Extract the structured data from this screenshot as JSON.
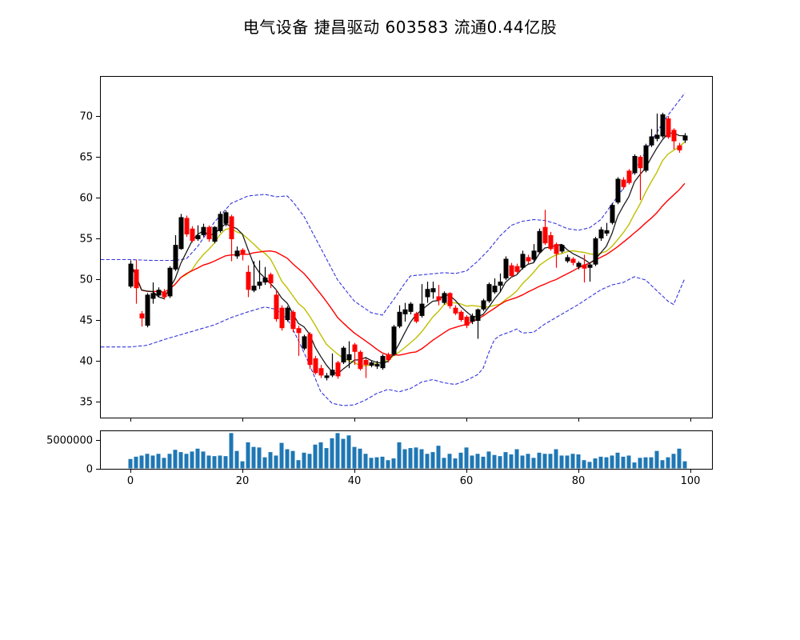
{
  "page": {
    "title": "电气设备 捷昌驱动 603583 流通0.44亿股"
  },
  "chart_data": {
    "type": "candlestick+volume",
    "title": "电气设备 捷昌驱动 603583 流通0.44亿股",
    "legend_position": "none",
    "grid": false,
    "price_axis": {
      "ticks": [
        35,
        40,
        45,
        50,
        55,
        60,
        65,
        70
      ],
      "range": [
        33.0,
        74.9
      ]
    },
    "volume_axis": {
      "tick_labels": [
        "0",
        "5000000"
      ],
      "tick_values": [
        0,
        5000000
      ],
      "range": [
        0,
        6670000
      ]
    },
    "x_axis": {
      "ticks": [
        0,
        20,
        40,
        60,
        80,
        100
      ],
      "range": [
        -5.4,
        103.9
      ]
    },
    "colors": {
      "up_candle": "#000000",
      "down_candle": "#ff0000",
      "volume_bar": "#1f77b4",
      "ma_fast": "#1c1c1c",
      "ma_mid": "#bfbf00",
      "ma_slow": "#ff0000",
      "band": "#3434dd",
      "frame": "#000000",
      "background": "#ffffff"
    },
    "ma_periods": {
      "fast": 5,
      "mid": 10,
      "slow": 20
    },
    "candles_ohlc": [
      [
        49.1,
        52.3,
        48.9,
        51.9
      ],
      [
        51.2,
        52.4,
        47.0,
        48.9
      ],
      [
        45.8,
        46.1,
        44.2,
        45.2
      ],
      [
        44.3,
        48.3,
        44.1,
        48.1
      ],
      [
        47.6,
        49.6,
        47.0,
        48.3
      ],
      [
        48.0,
        49.0,
        47.8,
        48.7
      ],
      [
        48.4,
        48.8,
        47.5,
        47.8
      ],
      [
        47.9,
        51.6,
        47.7,
        51.4
      ],
      [
        51.2,
        55.4,
        51.0,
        54.2
      ],
      [
        53.7,
        58.0,
        53.6,
        57.6
      ],
      [
        57.5,
        57.8,
        55.2,
        55.5
      ],
      [
        56.2,
        56.5,
        54.5,
        54.7
      ],
      [
        54.9,
        56.6,
        54.7,
        55.4
      ],
      [
        55.4,
        56.8,
        55.2,
        56.4
      ],
      [
        56.4,
        56.6,
        54.6,
        54.9
      ],
      [
        54.6,
        56.5,
        54.4,
        56.4
      ],
      [
        55.9,
        58.3,
        55.7,
        58.0
      ],
      [
        56.8,
        58.4,
        56.5,
        58.2
      ],
      [
        57.7,
        57.9,
        52.2,
        54.9
      ],
      [
        52.8,
        54.0,
        52.5,
        53.5
      ],
      [
        53.6,
        53.8,
        52.3,
        53.0
      ],
      [
        50.9,
        51.7,
        47.8,
        48.7
      ],
      [
        48.6,
        52.2,
        48.4,
        49.2
      ],
      [
        49.2,
        52.3,
        48.8,
        49.7
      ],
      [
        49.6,
        51.5,
        49.3,
        50.2
      ],
      [
        50.6,
        50.8,
        48.9,
        49.5
      ],
      [
        48.1,
        48.7,
        44.8,
        45.1
      ],
      [
        46.5,
        46.8,
        43.7,
        44.0
      ],
      [
        45.0,
        46.7,
        44.8,
        46.5
      ],
      [
        46.0,
        46.2,
        43.5,
        43.9
      ],
      [
        44.0,
        44.3,
        40.6,
        43.4
      ],
      [
        41.5,
        43.2,
        41.3,
        43.0
      ],
      [
        43.3,
        43.5,
        39.0,
        39.5
      ],
      [
        40.3,
        40.6,
        38.3,
        38.5
      ],
      [
        39.1,
        39.5,
        37.9,
        38.2
      ],
      [
        37.9,
        38.5,
        37.6,
        38.2
      ],
      [
        38.2,
        40.9,
        38.0,
        38.9
      ],
      [
        39.8,
        40.0,
        37.8,
        38.1
      ],
      [
        39.8,
        41.8,
        39.6,
        41.6
      ],
      [
        40.1,
        42.4,
        39.1,
        40.8
      ],
      [
        42.0,
        42.2,
        39.5,
        41.1
      ],
      [
        41.1,
        41.3,
        38.8,
        39.0
      ],
      [
        40.1,
        40.3,
        37.9,
        39.5
      ],
      [
        39.4,
        40.0,
        39.2,
        39.8
      ],
      [
        39.3,
        40.0,
        39.0,
        39.6
      ],
      [
        39.1,
        40.8,
        38.9,
        40.6
      ],
      [
        40.8,
        41.0,
        39.8,
        40.1
      ],
      [
        40.8,
        44.4,
        40.6,
        44.2
      ],
      [
        44.2,
        46.8,
        44.0,
        46.0
      ],
      [
        45.7,
        47.1,
        44.8,
        46.3
      ],
      [
        46.0,
        47.2,
        45.7,
        47.0
      ],
      [
        45.8,
        46.0,
        44.6,
        44.8
      ],
      [
        45.5,
        49.4,
        45.3,
        47.0
      ],
      [
        47.8,
        49.7,
        47.1,
        48.8
      ],
      [
        48.4,
        49.7,
        47.6,
        48.9
      ],
      [
        47.9,
        49.3,
        46.8,
        47.4
      ],
      [
        47.1,
        48.5,
        46.9,
        48.3
      ],
      [
        48.3,
        48.4,
        46.4,
        46.7
      ],
      [
        46.5,
        46.8,
        45.6,
        45.8
      ],
      [
        46.0,
        46.2,
        44.8,
        45.0
      ],
      [
        45.4,
        45.6,
        44.0,
        44.3
      ],
      [
        44.8,
        45.8,
        44.5,
        45.5
      ],
      [
        44.9,
        46.4,
        42.7,
        46.3
      ],
      [
        46.3,
        47.6,
        46.1,
        47.4
      ],
      [
        47.3,
        49.6,
        47.1,
        49.4
      ],
      [
        48.4,
        50.1,
        48.2,
        49.2
      ],
      [
        49.2,
        50.7,
        48.4,
        49.7
      ],
      [
        50.1,
        52.8,
        49.9,
        52.5
      ],
      [
        51.7,
        52.0,
        50.2,
        50.4
      ],
      [
        51.6,
        51.9,
        50.7,
        50.9
      ],
      [
        51.4,
        53.5,
        51.2,
        53.1
      ],
      [
        52.7,
        53.0,
        51.9,
        52.2
      ],
      [
        52.4,
        54.3,
        52.1,
        53.5
      ],
      [
        53.3,
        56.2,
        53.1,
        55.9
      ],
      [
        56.4,
        58.5,
        54.2,
        54.4
      ],
      [
        55.4,
        55.8,
        53.5,
        53.7
      ],
      [
        54.3,
        54.5,
        51.4,
        53.1
      ],
      [
        53.4,
        54.3,
        53.2,
        54.2
      ],
      [
        52.2,
        53.0,
        52.0,
        52.7
      ],
      [
        52.5,
        52.7,
        51.7,
        52.0
      ],
      [
        51.5,
        52.2,
        51.2,
        52.0
      ],
      [
        51.8,
        53.0,
        49.6,
        51.3
      ],
      [
        51.4,
        52.0,
        49.7,
        51.8
      ],
      [
        51.8,
        55.2,
        51.6,
        55.0
      ],
      [
        55.0,
        56.4,
        54.7,
        56.1
      ],
      [
        55.6,
        56.9,
        55.3,
        56.0
      ],
      [
        56.9,
        59.3,
        56.7,
        59.1
      ],
      [
        59.4,
        62.5,
        59.2,
        62.3
      ],
      [
        62.2,
        62.5,
        61.0,
        61.3
      ],
      [
        63.3,
        63.5,
        61.6,
        61.8
      ],
      [
        63.0,
        65.3,
        62.8,
        65.1
      ],
      [
        65.0,
        65.2,
        59.7,
        63.6
      ],
      [
        63.3,
        66.6,
        63.1,
        66.4
      ],
      [
        66.4,
        68.4,
        66.2,
        67.5
      ],
      [
        67.2,
        70.3,
        66.9,
        67.7
      ],
      [
        67.5,
        70.4,
        67.3,
        70.2
      ],
      [
        69.7,
        70.0,
        67.2,
        67.4
      ],
      [
        68.3,
        68.5,
        65.9,
        66.9
      ],
      [
        66.4,
        66.7,
        65.5,
        65.8
      ],
      [
        67.0,
        67.9,
        66.7,
        67.6
      ]
    ],
    "volumes": [
      1700000,
      2100000,
      2300000,
      2600000,
      2300000,
      2600000,
      1900000,
      2600000,
      3300000,
      2900000,
      2600000,
      3000000,
      3500000,
      3000000,
      2300000,
      2200000,
      2300000,
      2200000,
      6200000,
      3100000,
      1300000,
      4600000,
      3800000,
      3700000,
      2000000,
      2900000,
      2300000,
      4500000,
      3400000,
      3100000,
      1500000,
      2800000,
      2600000,
      4200000,
      4600000,
      3600000,
      5300000,
      6200000,
      5200000,
      5800000,
      3800000,
      3500000,
      2600000,
      1900000,
      2000000,
      2100000,
      1500000,
      1800000,
      4600000,
      3400000,
      3600000,
      3700000,
      3400000,
      2600000,
      2900000,
      4000000,
      1900000,
      2600000,
      1800000,
      2800000,
      3700000,
      2300000,
      2600000,
      2100000,
      3000000,
      2400000,
      2200000,
      2900000,
      2500000,
      3400000,
      2300000,
      2600000,
      1900000,
      2800000,
      2600000,
      2600000,
      3400000,
      2300000,
      2300000,
      2600000,
      2500000,
      1500000,
      1200000,
      1800000,
      2100000,
      2000000,
      2300000,
      2800000,
      2100000,
      2300000,
      1100000,
      1900000,
      2000000,
      2000000,
      3100000,
      1500000,
      2000000,
      2600000,
      3500000,
      1300000
    ],
    "band_upper_points": [
      [
        0,
        52.4
      ],
      [
        4,
        52.3
      ],
      [
        8,
        52.3
      ],
      [
        10,
        52.5
      ],
      [
        12,
        54.0
      ],
      [
        15,
        57.0
      ],
      [
        18,
        59.3
      ],
      [
        21,
        60.2
      ],
      [
        24,
        60.4
      ],
      [
        26,
        60.1
      ],
      [
        28,
        60.2
      ],
      [
        29,
        59.5
      ],
      [
        31,
        57.7
      ],
      [
        34,
        53.8
      ],
      [
        37,
        49.9
      ],
      [
        40,
        47.3
      ],
      [
        43,
        45.9
      ],
      [
        45,
        45.6
      ],
      [
        47,
        47.5
      ],
      [
        49,
        49.5
      ],
      [
        50,
        50.4
      ],
      [
        53,
        50.6
      ],
      [
        56,
        50.8
      ],
      [
        58,
        50.7
      ],
      [
        60,
        51.0
      ],
      [
        62,
        52.2
      ],
      [
        64,
        53.6
      ],
      [
        66,
        55.3
      ],
      [
        68,
        56.6
      ],
      [
        70,
        57.1
      ],
      [
        72,
        57.3
      ],
      [
        74,
        57.2
      ],
      [
        76,
        56.8
      ],
      [
        78,
        56.2
      ],
      [
        80,
        56.0
      ],
      [
        82,
        56.3
      ],
      [
        84,
        57.3
      ],
      [
        86,
        59.2
      ],
      [
        88,
        61.1
      ],
      [
        90,
        63.3
      ],
      [
        92,
        65.6
      ],
      [
        94,
        68.0
      ],
      [
        96,
        70.1
      ],
      [
        98,
        71.9
      ],
      [
        99,
        72.8
      ]
    ],
    "band_lower_points": [
      [
        0,
        41.7
      ],
      [
        3,
        41.9
      ],
      [
        6,
        42.6
      ],
      [
        9,
        43.2
      ],
      [
        12,
        43.8
      ],
      [
        15,
        44.4
      ],
      [
        18,
        45.3
      ],
      [
        21,
        46.0
      ],
      [
        24,
        46.6
      ],
      [
        26,
        46.3
      ],
      [
        28,
        45.2
      ],
      [
        30,
        42.5
      ],
      [
        32,
        39.5
      ],
      [
        34,
        36.2
      ],
      [
        36,
        34.8
      ],
      [
        38,
        34.5
      ],
      [
        40,
        34.6
      ],
      [
        42,
        35.2
      ],
      [
        44,
        36.0
      ],
      [
        46,
        36.5
      ],
      [
        48,
        36.2
      ],
      [
        50,
        36.6
      ],
      [
        52,
        37.4
      ],
      [
        54,
        37.7
      ],
      [
        56,
        37.3
      ],
      [
        58,
        37.1
      ],
      [
        60,
        37.6
      ],
      [
        62,
        38.3
      ],
      [
        63,
        39.1
      ],
      [
        64,
        41.0
      ],
      [
        65,
        42.6
      ],
      [
        66,
        43.1
      ],
      [
        68,
        43.6
      ],
      [
        69,
        43.9
      ],
      [
        70,
        43.4
      ],
      [
        72,
        43.5
      ],
      [
        74,
        44.5
      ],
      [
        76,
        45.3
      ],
      [
        78,
        46.1
      ],
      [
        80,
        46.9
      ],
      [
        82,
        47.8
      ],
      [
        84,
        48.7
      ],
      [
        86,
        49.3
      ],
      [
        88,
        49.6
      ],
      [
        90,
        50.3
      ],
      [
        92,
        49.9
      ],
      [
        94,
        48.6
      ],
      [
        96,
        47.3
      ],
      [
        97,
        46.9
      ],
      [
        99,
        50.1
      ]
    ]
  }
}
